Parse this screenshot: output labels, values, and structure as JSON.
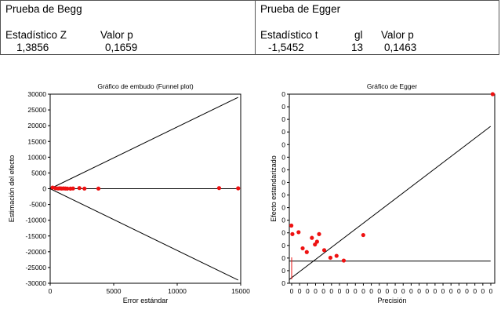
{
  "begg": {
    "title": "Prueba de Begg",
    "h1": "Estadístico Z",
    "h2": "Valor p",
    "v1": "1,3856",
    "v2": "0,1659"
  },
  "egger": {
    "title": "Prueba de Egger",
    "h1": "Estadístico t",
    "h2": "gl",
    "h3": "Valor p",
    "v1": "-1,5452",
    "v2": "13",
    "v3": "0,1463"
  },
  "chart_data": [
    {
      "type": "scatter",
      "title": "Gráfico de embudo (Funnel plot)",
      "xlabel": "Error estándar",
      "ylabel": "Estimación del efecto",
      "xlim": [
        0,
        15000
      ],
      "ylim": [
        -30000,
        30000
      ],
      "xticks": [
        "0",
        "5000",
        "10000",
        "15000"
      ],
      "yticks": [
        "30000",
        "25000",
        "20000",
        "15000",
        "10000",
        "5000",
        "0",
        "-5000",
        "-10000",
        "-15000",
        "-20000",
        "-25000",
        "-30000"
      ],
      "x": [
        190,
        430,
        620,
        760,
        900,
        1050,
        1200,
        1350,
        1600,
        1800,
        2300,
        2700,
        3800,
        13300,
        14800
      ],
      "y": [
        350,
        150,
        80,
        120,
        60,
        100,
        60,
        40,
        30,
        80,
        200,
        50,
        50,
        200,
        120
      ],
      "reference_lines": [
        {
          "name": "upper",
          "x": [
            0,
            14800
          ],
          "y": [
            0,
            29000
          ]
        },
        {
          "name": "lower",
          "x": [
            0,
            14800
          ],
          "y": [
            0,
            -29000
          ]
        },
        {
          "name": "pooled",
          "x": [
            0,
            14800
          ],
          "y": [
            0,
            0
          ]
        }
      ],
      "colors": {
        "points": "#ee1111",
        "lines": "#000000"
      }
    },
    {
      "type": "scatter",
      "title": "Gráfico de Egger",
      "xlabel": "Precisión",
      "ylabel": "Efecto estandarizado",
      "xlim": [
        0,
        1
      ],
      "ylim": [
        0,
        1
      ],
      "xticks": [
        "0",
        "0",
        "0",
        "0",
        "0",
        "0",
        "0",
        "0",
        "0",
        "0",
        "0",
        "0",
        "0",
        "0",
        "0",
        "0",
        "0",
        "0",
        "0",
        "0",
        "0",
        "0",
        "0",
        "0",
        "0",
        "0",
        "0",
        "0",
        "0",
        "0",
        "0",
        "0",
        "0",
        "0",
        "0",
        "0",
        "0",
        "0",
        "0",
        "0",
        "0",
        "0",
        "0",
        "0",
        "0",
        "0",
        "0",
        "0",
        "0",
        "0",
        "0",
        "0",
        "0",
        "0",
        "0",
        "0",
        "0",
        "0",
        "0",
        "0",
        "0",
        "0",
        "0",
        "0",
        "0",
        "0",
        "0",
        "0",
        "0",
        "0",
        "0",
        "0",
        "0",
        "0",
        "0",
        "0",
        "0",
        "0",
        "0",
        "0",
        "0",
        "0",
        "0",
        "0",
        "0",
        "0",
        "0",
        "0",
        "0",
        "0",
        "0",
        "0",
        "0",
        "0",
        "0",
        "0",
        "0",
        "0",
        "0",
        "0",
        "0",
        "0",
        "0",
        "0",
        "0",
        "0",
        "0",
        "0",
        "0",
        "0",
        "0",
        "0",
        "0",
        "0",
        "0",
        "0",
        "0",
        "0",
        "0",
        "0",
        "0",
        "0",
        "0",
        "0",
        "0",
        "0",
        "0",
        "0",
        "0",
        "0",
        "0",
        "0",
        "0",
        "0",
        "0",
        "0",
        "0",
        "0",
        "0",
        "0",
        "0",
        "0",
        "0",
        "0",
        "0",
        "0",
        "0",
        "0",
        "0",
        "0",
        "0",
        "0",
        "0",
        "0",
        "0",
        "0",
        "0",
        "0",
        "0",
        "0",
        "0",
        "0",
        "0",
        "0",
        "0",
        "0",
        "0",
        "0",
        "0",
        "0",
        "0",
        "0",
        "0",
        "0",
        "0",
        "0",
        "0",
        "0",
        "0",
        "0",
        "0",
        "0",
        "0",
        "0",
        "0",
        "0",
        "0",
        "0",
        "0",
        "0",
        "0",
        "0",
        "0",
        "0",
        "0",
        "0",
        "0",
        "0",
        "0",
        "0",
        "0",
        "0",
        "0",
        "0",
        "0",
        "0",
        "0",
        "0",
        "0",
        "0",
        "0",
        "0",
        "0",
        "0",
        "0",
        "0",
        "0",
        "0",
        "0",
        "0",
        "0",
        "0",
        "0",
        "0",
        "0",
        "0",
        "0",
        "0",
        "0",
        "0",
        "0",
        "0",
        "0",
        "0",
        "0",
        "0",
        "0",
        "0",
        "0",
        "0",
        "0",
        "0",
        "0",
        "0",
        "0",
        "0",
        "0",
        "0",
        "0",
        "0",
        "0",
        "0",
        "0",
        "0",
        "0",
        "0",
        "0",
        "0",
        "0",
        "0",
        "0",
        "0",
        "0",
        "0",
        "0"
      ],
      "yticks": [
        "0",
        "0",
        "0",
        "0",
        "0",
        "0",
        "0",
        "0",
        "0",
        "0",
        "0",
        "0",
        "0",
        "0",
        "0",
        "0"
      ],
      "x": [
        0.01,
        0.015,
        0.045,
        0.065,
        0.085,
        0.11,
        0.125,
        0.135,
        0.145,
        0.17,
        0.2,
        0.23,
        0.265,
        0.36,
        0.99
      ],
      "y": [
        0.305,
        0.26,
        0.27,
        0.185,
        0.165,
        0.24,
        0.205,
        0.22,
        0.26,
        0.175,
        0.135,
        0.145,
        0.12,
        0.255,
        1.0
      ],
      "reference_lines": [
        {
          "name": "regression",
          "x": [
            0.0,
            0.98
          ],
          "y": [
            0.02,
            0.83
          ]
        },
        {
          "name": "zero",
          "x": [
            0.0,
            0.98
          ],
          "y": [
            0.117,
            0.117
          ]
        }
      ],
      "colors": {
        "points": "#ee1111",
        "lines": "#000000"
      }
    }
  ]
}
